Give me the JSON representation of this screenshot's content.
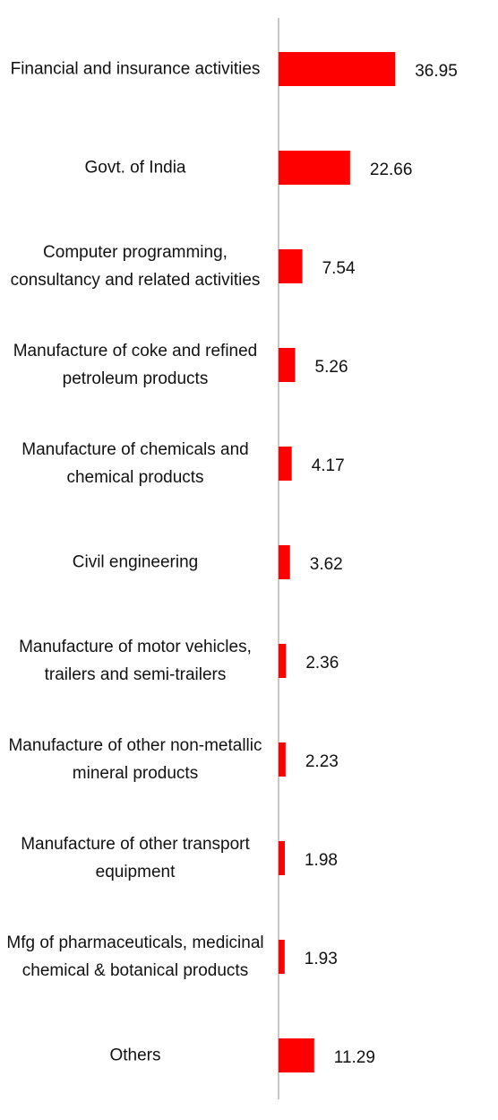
{
  "chart_data": {
    "type": "barh",
    "categories": [
      "Financial and insurance activities",
      "Govt. of India",
      "Computer programming, consultancy and related activities",
      "Manufacture of coke and refined petroleum products",
      "Manufacture of chemicals and chemical products",
      "Civil engineering",
      "Manufacture of motor vehicles, trailers and semi-trailers",
      "Manufacture of other non-metallic mineral products",
      "Manufacture of other transport equipment",
      "Mfg of pharmaceuticals, medicinal chemical & botanical products",
      "Others"
    ],
    "values": [
      36.95,
      22.66,
      7.54,
      5.26,
      4.17,
      3.62,
      2.36,
      2.23,
      1.98,
      1.93,
      11.29
    ],
    "color": "#ff0000",
    "xlim": [
      0,
      40
    ]
  }
}
